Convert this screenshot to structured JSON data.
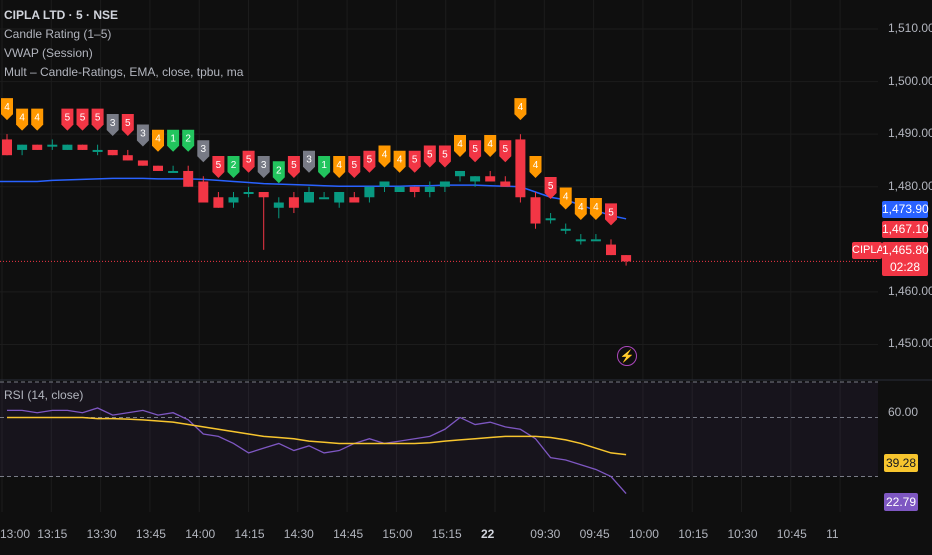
{
  "legend": {
    "symbol_title": "CIPLA LTD · 5 · NSE",
    "indicators": [
      "Candle Rating (1–5)",
      "VWAP (Session)",
      "Mult – Candle-Ratings, EMA, close, tpbu, ma"
    ]
  },
  "price_axis": {
    "ticks": [
      "1,510.00",
      "1,500.00",
      "1,490.00",
      "1,480.00",
      "1,460.00",
      "1,450.00"
    ],
    "vwap_label": "1,473.90",
    "vwap_color": "#2962ff",
    "prev_label": "1,467.10",
    "last_label": "1,465.80",
    "countdown": "02:28",
    "symbol_tag": "CIPLA",
    "down_color": "#f23645",
    "up_color": "#089981"
  },
  "time_axis": {
    "labels": [
      "13:00",
      "13:15",
      "13:30",
      "13:45",
      "14:00",
      "14:15",
      "14:30",
      "14:45",
      "15:00",
      "15:15",
      "22",
      "09:30",
      "09:45",
      "10:00",
      "10:15",
      "10:30",
      "10:45",
      "11"
    ]
  },
  "rsi": {
    "title": "RSI (14, close)",
    "ticks": [
      "60.00"
    ],
    "ma_label": "39.28",
    "rsi_label": "22.79",
    "rsi_color": "#7e57c2",
    "ma_color": "#f7c52e"
  },
  "misc": {
    "lightning_icon": "lightning-icon"
  },
  "chart_data": {
    "type": "candlestick",
    "ylim": [
      1444,
      1514
    ],
    "candles": [
      {
        "o": 1489,
        "h": 1490,
        "l": 1486,
        "c": 1486
      },
      {
        "o": 1487,
        "h": 1488,
        "l": 1486,
        "c": 1488
      },
      {
        "o": 1488,
        "h": 1488,
        "l": 1487,
        "c": 1487
      },
      {
        "o": 1488,
        "h": 1489,
        "l": 1487,
        "c": 1488
      },
      {
        "o": 1487,
        "h": 1488,
        "l": 1487,
        "c": 1488
      },
      {
        "o": 1488,
        "h": 1488,
        "l": 1487,
        "c": 1487
      },
      {
        "o": 1487,
        "h": 1488,
        "l": 1486,
        "c": 1487
      },
      {
        "o": 1487,
        "h": 1487,
        "l": 1486,
        "c": 1486
      },
      {
        "o": 1486,
        "h": 1487,
        "l": 1485,
        "c": 1485
      },
      {
        "o": 1485,
        "h": 1485,
        "l": 1484,
        "c": 1484
      },
      {
        "o": 1484,
        "h": 1484,
        "l": 1483,
        "c": 1483
      },
      {
        "o": 1483,
        "h": 1484,
        "l": 1483,
        "c": 1483
      },
      {
        "o": 1483,
        "h": 1484,
        "l": 1480,
        "c": 1480
      },
      {
        "o": 1481,
        "h": 1482,
        "l": 1477,
        "c": 1477
      },
      {
        "o": 1478,
        "h": 1479,
        "l": 1476,
        "c": 1476
      },
      {
        "o": 1477,
        "h": 1479,
        "l": 1476,
        "c": 1478
      },
      {
        "o": 1479,
        "h": 1480,
        "l": 1478,
        "c": 1479
      },
      {
        "o": 1479,
        "h": 1479,
        "l": 1468,
        "c": 1478
      },
      {
        "o": 1476,
        "h": 1478,
        "l": 1474,
        "c": 1477
      },
      {
        "o": 1478,
        "h": 1479,
        "l": 1475,
        "c": 1476
      },
      {
        "o": 1477,
        "h": 1480,
        "l": 1477,
        "c": 1479
      },
      {
        "o": 1478,
        "h": 1479,
        "l": 1478,
        "c": 1478
      },
      {
        "o": 1477,
        "h": 1479,
        "l": 1476,
        "c": 1479
      },
      {
        "o": 1478,
        "h": 1479,
        "l": 1477,
        "c": 1477
      },
      {
        "o": 1478,
        "h": 1480,
        "l": 1477,
        "c": 1480
      },
      {
        "o": 1480,
        "h": 1481,
        "l": 1479,
        "c": 1481
      },
      {
        "o": 1479,
        "h": 1480,
        "l": 1479,
        "c": 1480
      },
      {
        "o": 1480,
        "h": 1480,
        "l": 1478,
        "c": 1479
      },
      {
        "o": 1479,
        "h": 1481,
        "l": 1478,
        "c": 1480
      },
      {
        "o": 1480,
        "h": 1481,
        "l": 1479,
        "c": 1481
      },
      {
        "o": 1482,
        "h": 1483,
        "l": 1481,
        "c": 1483
      },
      {
        "o": 1481,
        "h": 1482,
        "l": 1480,
        "c": 1482
      },
      {
        "o": 1482,
        "h": 1483,
        "l": 1481,
        "c": 1481
      },
      {
        "o": 1481,
        "h": 1482,
        "l": 1480,
        "c": 1480
      },
      {
        "o": 1489,
        "h": 1490,
        "l": 1477,
        "c": 1478
      },
      {
        "o": 1478,
        "h": 1479,
        "l": 1472,
        "c": 1473
      },
      {
        "o": 1474,
        "h": 1475,
        "l": 1473,
        "c": 1474
      },
      {
        "o": 1472,
        "h": 1473,
        "l": 1471,
        "c": 1472
      },
      {
        "o": 1470,
        "h": 1471,
        "l": 1469,
        "c": 1470
      },
      {
        "o": 1470,
        "h": 1471,
        "l": 1470,
        "c": 1470
      },
      {
        "o": 1469,
        "h": 1470,
        "l": 1467,
        "c": 1467
      },
      {
        "o": 1467,
        "h": 1467,
        "l": 1465,
        "c": 1465.8
      }
    ],
    "ratings": [
      {
        "i": 0,
        "r": 4,
        "pos": "above"
      },
      {
        "i": 1,
        "r": 4,
        "pos": "above"
      },
      {
        "i": 2,
        "r": 4,
        "pos": "above"
      },
      {
        "i": 4,
        "r": 5,
        "pos": "above"
      },
      {
        "i": 5,
        "r": 5,
        "pos": "above"
      },
      {
        "i": 6,
        "r": 5,
        "pos": "above"
      },
      {
        "i": 7,
        "r": 3,
        "pos": "above"
      },
      {
        "i": 8,
        "r": 5,
        "pos": "above"
      },
      {
        "i": 9,
        "r": 3,
        "pos": "above"
      },
      {
        "i": 10,
        "r": 4,
        "pos": "above"
      },
      {
        "i": 11,
        "r": 1,
        "pos": "above"
      },
      {
        "i": 12,
        "r": 2,
        "pos": "above"
      },
      {
        "i": 13,
        "r": 3,
        "pos": "above"
      },
      {
        "i": 14,
        "r": 5,
        "pos": "above"
      },
      {
        "i": 15,
        "r": 2,
        "pos": "above"
      },
      {
        "i": 16,
        "r": 5,
        "pos": "above"
      },
      {
        "i": 17,
        "r": 3,
        "pos": "above"
      },
      {
        "i": 18,
        "r": 2,
        "pos": "above"
      },
      {
        "i": 19,
        "r": 5,
        "pos": "above"
      },
      {
        "i": 20,
        "r": 3,
        "pos": "above"
      },
      {
        "i": 21,
        "r": 1,
        "pos": "above"
      },
      {
        "i": 22,
        "r": 4,
        "pos": "above"
      },
      {
        "i": 23,
        "r": 5,
        "pos": "above"
      },
      {
        "i": 24,
        "r": 5,
        "pos": "above"
      },
      {
        "i": 25,
        "r": 4,
        "pos": "above"
      },
      {
        "i": 26,
        "r": 4,
        "pos": "above"
      },
      {
        "i": 27,
        "r": 5,
        "pos": "above"
      },
      {
        "i": 28,
        "r": 5,
        "pos": "above"
      },
      {
        "i": 29,
        "r": 5,
        "pos": "above"
      },
      {
        "i": 30,
        "r": 4,
        "pos": "above"
      },
      {
        "i": 31,
        "r": 5,
        "pos": "above"
      },
      {
        "i": 32,
        "r": 4,
        "pos": "above"
      },
      {
        "i": 33,
        "r": 5,
        "pos": "above"
      },
      {
        "i": 34,
        "r": 4,
        "pos": "above"
      },
      {
        "i": 35,
        "r": 4,
        "pos": "above"
      },
      {
        "i": 36,
        "r": 5,
        "pos": "above"
      },
      {
        "i": 37,
        "r": 4,
        "pos": "above"
      },
      {
        "i": 38,
        "r": 4,
        "pos": "above"
      },
      {
        "i": 39,
        "r": 4,
        "pos": "above"
      },
      {
        "i": 40,
        "r": 5,
        "pos": "above"
      }
    ],
    "rating_colors": {
      "1": "#22c55e",
      "2": "#22c55e",
      "3": "#787b86",
      "4": "#ff9800",
      "5": "#f23645"
    },
    "vwap": [
      1481,
      1481,
      1481,
      1481.2,
      1481.3,
      1481.4,
      1481.5,
      1481.6,
      1481.6,
      1481.6,
      1481.5,
      1481.5,
      1481.5,
      1481.4,
      1481.2,
      1481,
      1480.8,
      1480.6,
      1480.5,
      1480.4,
      1480.3,
      1480.2,
      1480.1,
      1480.1,
      1480.1,
      1480.1,
      1480.1,
      1480.2,
      1480.2,
      1480.3,
      1480.3,
      1480.3,
      1480.2,
      1480.1,
      1480,
      1479,
      1478,
      1477.5,
      1476.5,
      1475.5,
      1474.5,
      1473.9
    ],
    "rsi_values": [
      58,
      58,
      57,
      58,
      58,
      57,
      59,
      56,
      57,
      58,
      56,
      57,
      54,
      48,
      47,
      44,
      40,
      42,
      44,
      41,
      43,
      40,
      41,
      44,
      46,
      44,
      45,
      46,
      47,
      50,
      55,
      52,
      53,
      51,
      50,
      46,
      38,
      37,
      35,
      33,
      30,
      22.79
    ],
    "rsi_ma": [
      55,
      55,
      55,
      55,
      55,
      55,
      54.5,
      54.5,
      54.3,
      54,
      53.5,
      53,
      52,
      51,
      50,
      49,
      48,
      47,
      46.5,
      46,
      45,
      44.5,
      44,
      44,
      44,
      44,
      44,
      44,
      44.3,
      45,
      45.5,
      46,
      46.5,
      47,
      47,
      47,
      46.5,
      45.5,
      44,
      42,
      40,
      39.28
    ],
    "rsi_ylim": [
      15,
      70
    ],
    "rsi_bands": [
      70,
      55,
      30
    ]
  }
}
